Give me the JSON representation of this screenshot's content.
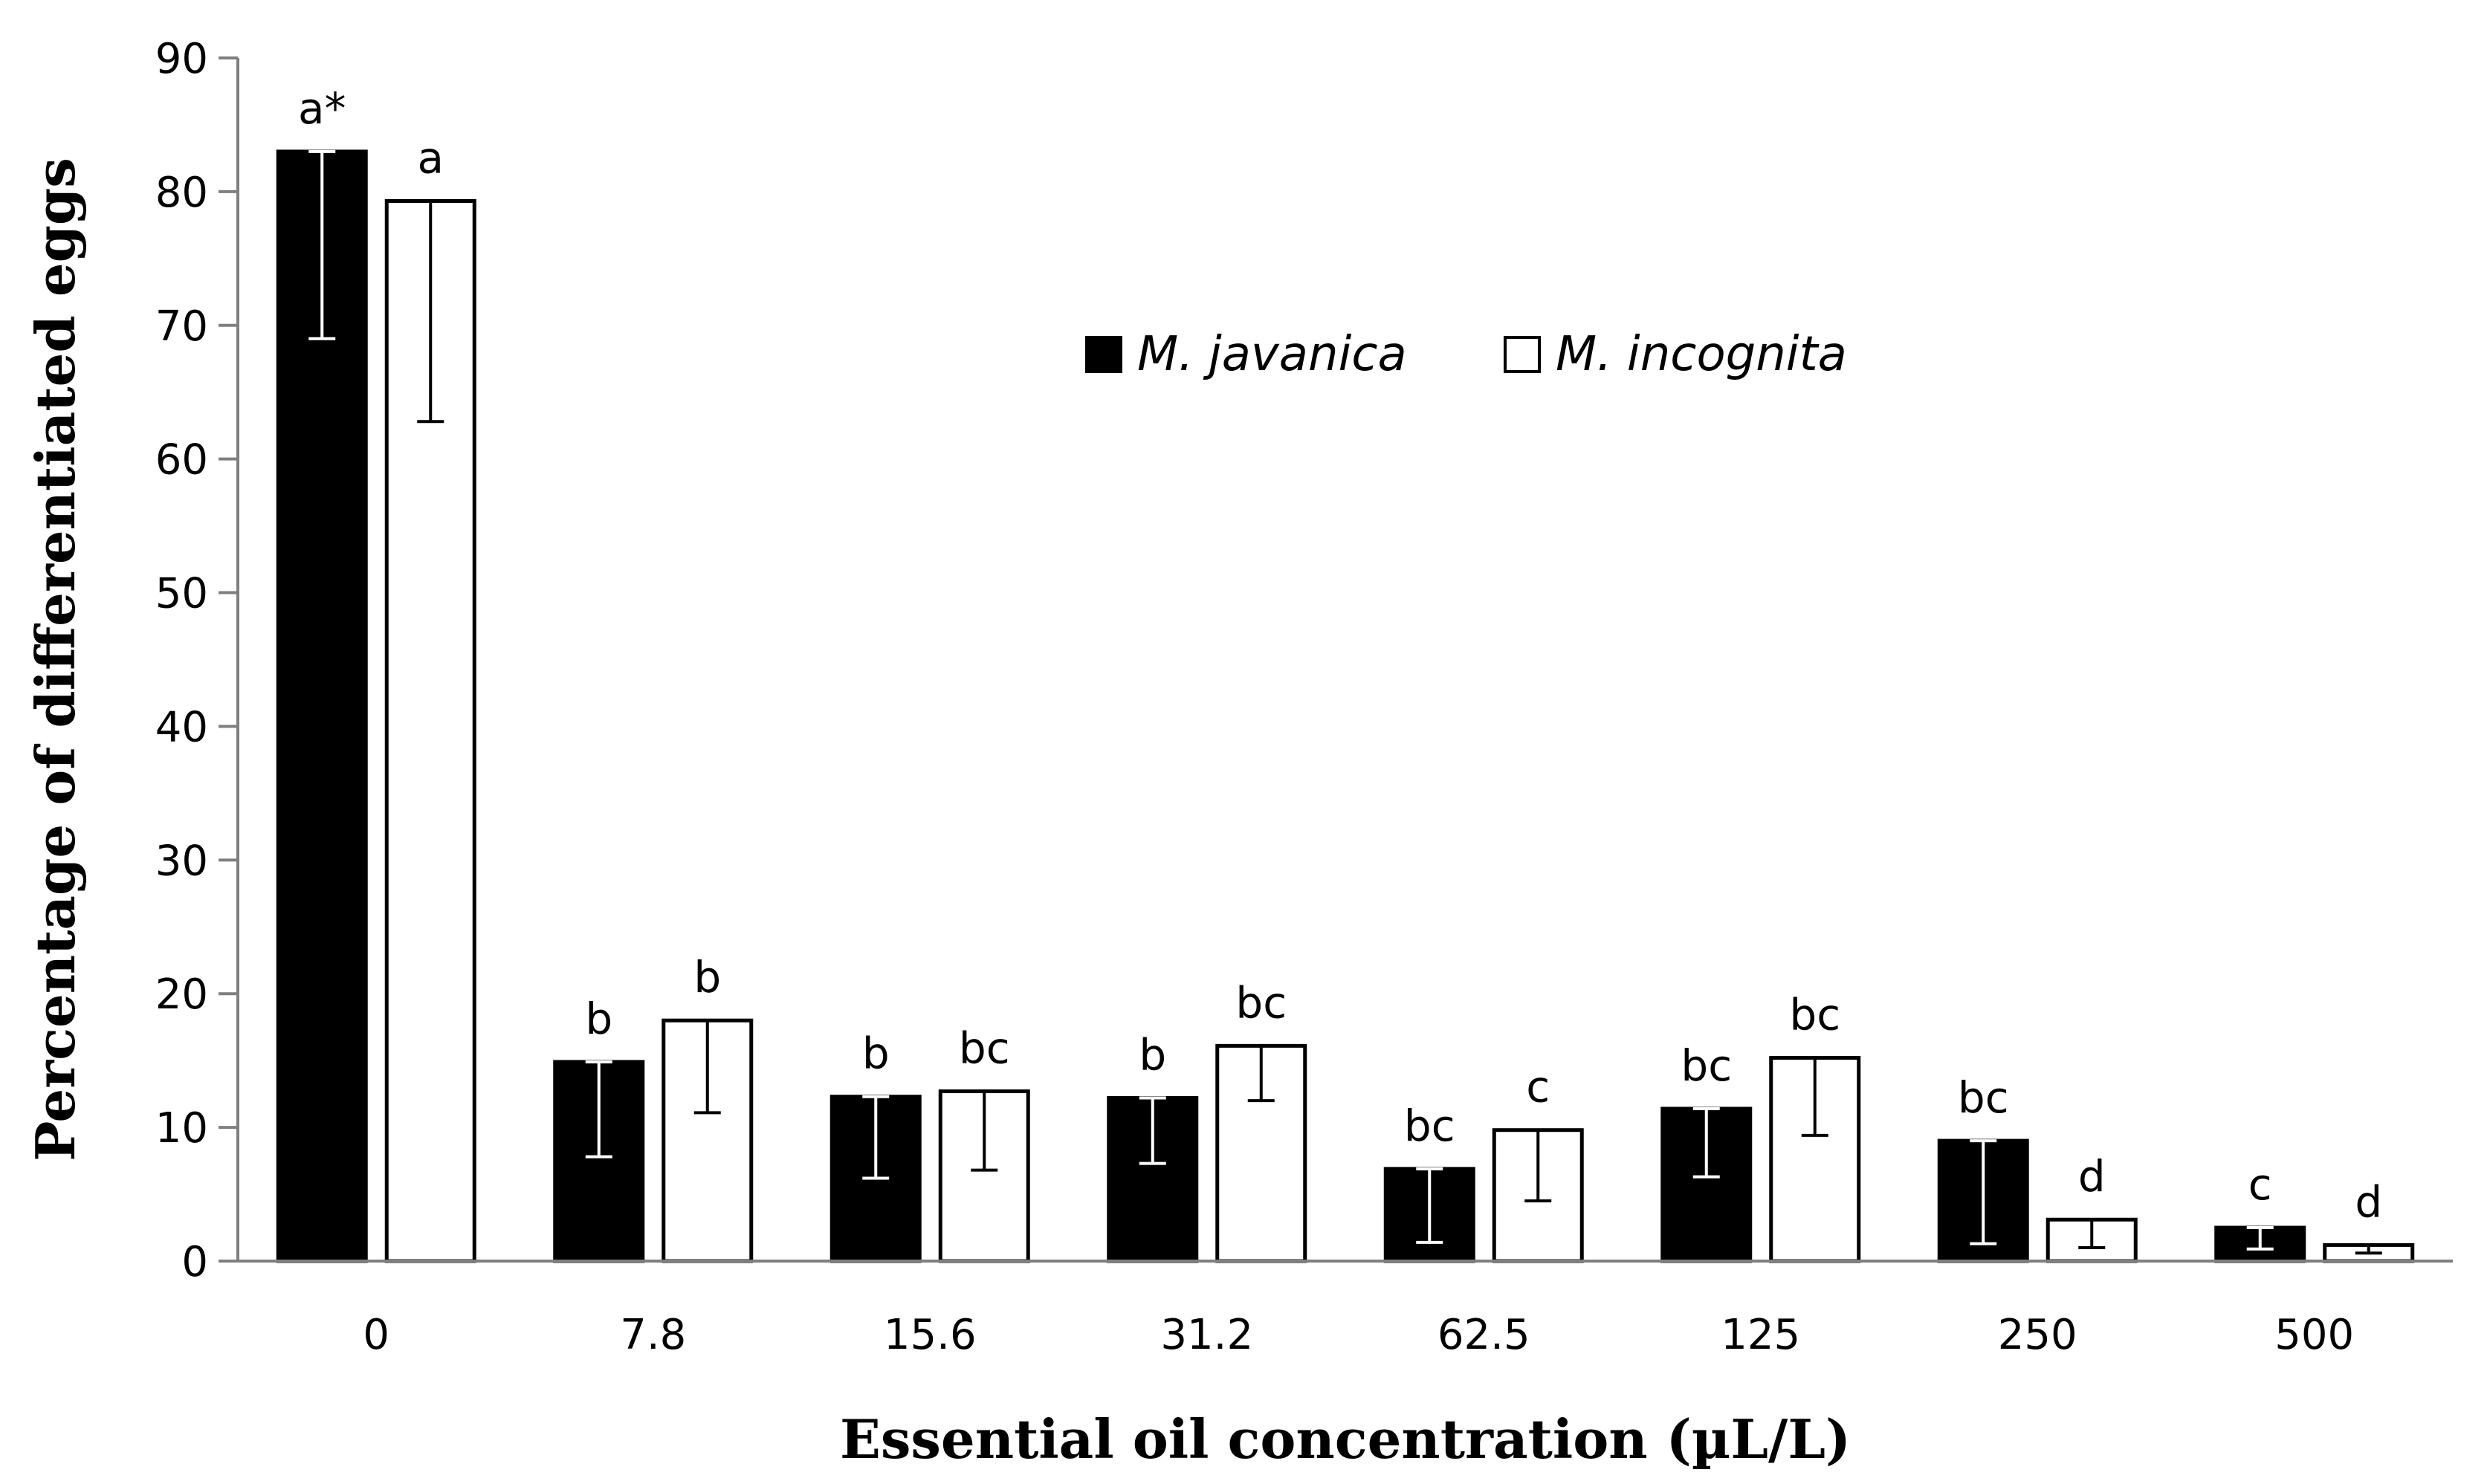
{
  "chart_data": {
    "type": "bar",
    "title": "",
    "xlabel": "Essential oil concentration (µL/L)",
    "ylabel": "Percentage of differentiated eggs",
    "ylim": [
      0,
      90
    ],
    "yticks": [
      0,
      10,
      20,
      30,
      40,
      50,
      60,
      70,
      80,
      90
    ],
    "categories": [
      "0",
      "7.8",
      "15.6",
      "31.2",
      "62.5",
      "125",
      "250",
      "500"
    ],
    "legend_position": "top-center",
    "series": [
      {
        "name": "M. javanica",
        "color": "#000000",
        "fill": "black",
        "values": [
          83,
          14.9,
          12.3,
          12.2,
          6.9,
          11.4,
          9.0,
          2.5
        ],
        "error_low": [
          69,
          7.8,
          6.2,
          7.3,
          1.4,
          6.3,
          1.3,
          0.9
        ],
        "error_high": [
          83,
          14.9,
          12.3,
          12.2,
          6.9,
          11.4,
          9.0,
          2.5
        ],
        "significance": [
          "a*",
          "b",
          "b",
          "b",
          "bc",
          "bc",
          "bc",
          "c"
        ]
      },
      {
        "name": "M. incognita",
        "color": "#ffffff",
        "fill": "white",
        "values": [
          79.3,
          18.0,
          12.7,
          16.1,
          9.8,
          15.2,
          3.1,
          1.2
        ],
        "error_low": [
          62.8,
          11.1,
          6.8,
          12.0,
          4.5,
          9.4,
          1.0,
          0.6
        ],
        "error_high": [
          79.3,
          18.0,
          12.7,
          16.1,
          9.8,
          15.2,
          3.1,
          1.2
        ],
        "significance": [
          "a",
          "b",
          "bc",
          "bc",
          "c",
          "bc",
          "d",
          "d"
        ]
      }
    ]
  }
}
